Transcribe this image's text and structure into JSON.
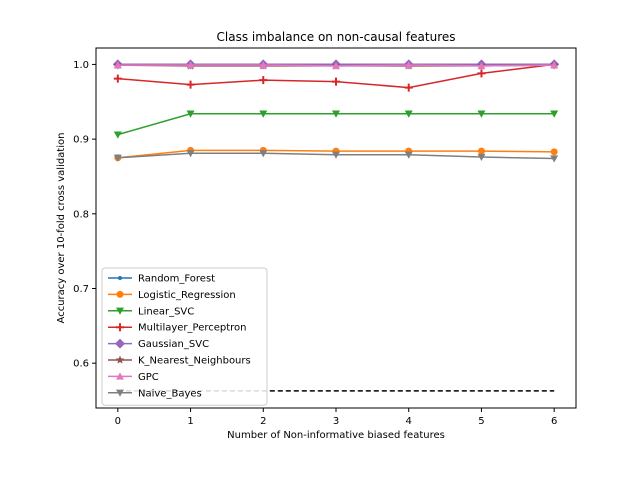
{
  "chart_data": {
    "type": "line",
    "title": "Class imbalance on non-causal features",
    "xlabel": "Number of Non-informative biased features",
    "ylabel": "Accuracy over 10-fold cross validation",
    "x": [
      0,
      1,
      2,
      3,
      4,
      5,
      6
    ],
    "xticks": [
      "0",
      "1",
      "2",
      "3",
      "4",
      "5",
      "6"
    ],
    "yticks": [
      "0.6",
      "0.7",
      "0.8",
      "0.9",
      "1.0"
    ],
    "xlim": [
      -0.3,
      6.3
    ],
    "ylim": [
      0.54,
      1.022
    ],
    "grid": false,
    "legend_position": "lower-left",
    "series": [
      {
        "name": "Random_Forest",
        "color": "#1f77b4",
        "marker": "point",
        "values": [
          1.0,
          1.0,
          1.0,
          1.0,
          1.0,
          1.0,
          1.0
        ]
      },
      {
        "name": "Logistic_Regression",
        "color": "#ff7f0e",
        "marker": "circle",
        "values": [
          0.875,
          0.885,
          0.885,
          0.884,
          0.884,
          0.884,
          0.883
        ]
      },
      {
        "name": "Linear_SVC",
        "color": "#2ca02c",
        "marker": "triangle-down",
        "values": [
          0.906,
          0.934,
          0.934,
          0.934,
          0.934,
          0.934,
          0.934
        ]
      },
      {
        "name": "Multilayer_Perceptron",
        "color": "#d62728",
        "marker": "plus",
        "values": [
          0.981,
          0.973,
          0.979,
          0.977,
          0.969,
          0.988,
          1.0
        ]
      },
      {
        "name": "Gaussian_SVC",
        "color": "#9467bd",
        "marker": "diamond",
        "values": [
          1.0,
          1.0,
          1.0,
          1.0,
          1.0,
          1.0,
          1.0
        ]
      },
      {
        "name": "K_Nearest_Neighbours",
        "color": "#8c564b",
        "marker": "star",
        "values": [
          0.999,
          0.998,
          0.998,
          0.998,
          0.998,
          0.998,
          0.999
        ]
      },
      {
        "name": "GPC",
        "color": "#e377c2",
        "marker": "triangle-up",
        "values": [
          0.999,
          0.999,
          0.999,
          0.998,
          0.999,
          0.998,
          0.999
        ]
      },
      {
        "name": "Naive_Bayes",
        "color": "#7f7f7f",
        "marker": "triangle-down",
        "values": [
          0.875,
          0.881,
          0.881,
          0.879,
          0.879,
          0.876,
          0.874
        ]
      }
    ],
    "reference_line": {
      "y": 0.563,
      "style": "dashed",
      "color": "#000000"
    }
  }
}
